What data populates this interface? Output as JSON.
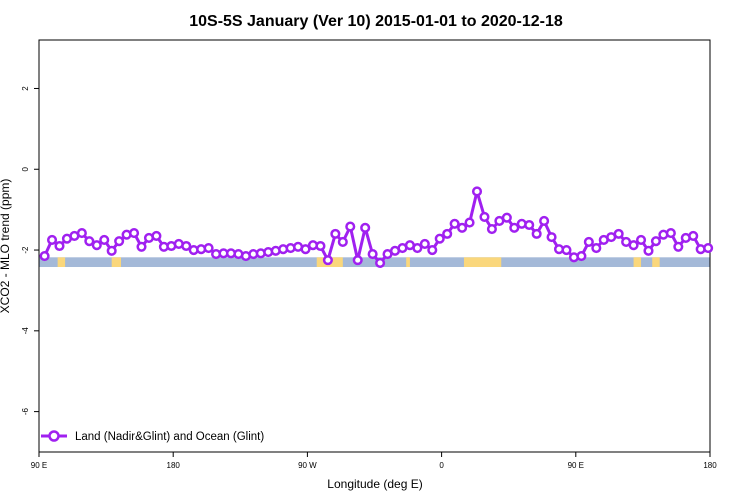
{
  "chart_data": {
    "type": "line",
    "title": "10S-5S January (Ver 10)   2015-01-01 to 2020-12-18",
    "xlabel": "Longitude (deg E)",
    "ylabel": "XCO2 - MLO trend (ppm)",
    "xlim": [
      90,
      450
    ],
    "ylim": [
      -7,
      3.2
    ],
    "x_ticks": [
      {
        "value": 90,
        "label": "90 E"
      },
      {
        "value": 162,
        "label": "180"
      },
      {
        "value": 234,
        "label": "90 W"
      },
      {
        "value": 306,
        "label": "0"
      },
      {
        "value": 378,
        "label": "90 E"
      },
      {
        "value": 450,
        "label": "180"
      }
    ],
    "y_ticks": [
      {
        "value": 2,
        "label": "2"
      },
      {
        "value": 0,
        "label": "0"
      },
      {
        "value": -2,
        "label": "-2"
      },
      {
        "value": -4,
        "label": "-4"
      },
      {
        "value": -6,
        "label": "-6"
      }
    ],
    "legend": {
      "label": "Land (Nadir&Glint) and Ocean (Glint)",
      "position": "bottom-left"
    },
    "series": [
      {
        "name": "Land (Nadir&Glint) and Ocean (Glint)",
        "color": "#a020f0",
        "x": [
          93,
          97,
          101,
          105,
          109,
          113,
          117,
          121,
          125,
          129,
          133,
          137,
          141,
          145,
          149,
          153,
          157,
          161,
          165,
          169,
          173,
          177,
          181,
          185,
          189,
          193,
          197,
          201,
          205,
          209,
          213,
          217,
          221,
          225,
          229,
          233,
          237,
          241,
          245,
          249,
          253,
          257,
          261,
          265,
          269,
          273,
          277,
          281,
          285,
          289,
          293,
          297,
          301,
          305,
          309,
          313,
          317,
          321,
          325,
          329,
          333,
          337,
          341,
          345,
          349,
          353,
          357,
          361,
          365,
          369,
          373,
          377,
          381,
          385,
          389,
          393,
          397,
          401,
          405,
          409,
          413,
          417,
          421,
          425,
          429,
          433,
          437,
          441,
          445,
          449
        ],
        "values": [
          -2.15,
          -1.75,
          -1.9,
          -1.72,
          -1.65,
          -1.58,
          -1.78,
          -1.88,
          -1.75,
          -2.02,
          -1.78,
          -1.62,
          -1.58,
          -1.92,
          -1.7,
          -1.65,
          -1.92,
          -1.9,
          -1.85,
          -1.9,
          -2.0,
          -1.98,
          -1.95,
          -2.1,
          -2.08,
          -2.08,
          -2.1,
          -2.15,
          -2.1,
          -2.08,
          -2.05,
          -2.02,
          -1.98,
          -1.95,
          -1.92,
          -1.98,
          -1.88,
          -1.9,
          -2.25,
          -1.6,
          -1.8,
          -1.42,
          -2.25,
          -1.45,
          -2.1,
          -2.32,
          -2.1,
          -2.02,
          -1.95,
          -1.88,
          -1.95,
          -1.85,
          -2.0,
          -1.72,
          -1.6,
          -1.35,
          -1.45,
          -1.32,
          -0.55,
          -1.18,
          -1.48,
          -1.28,
          -1.2,
          -1.45,
          -1.35,
          -1.38,
          -1.6,
          -1.28,
          -1.68,
          -1.98,
          -2.0,
          -2.18,
          -2.15,
          -1.8,
          -1.95,
          -1.75,
          -1.68,
          -1.6,
          -1.8,
          -1.88,
          -1.75,
          -2.02,
          -1.78,
          -1.62,
          -1.58,
          -1.92,
          -1.7,
          -1.65,
          -1.98,
          -1.95
        ]
      }
    ],
    "background_band": {
      "y_range": [
        -2.42,
        -2.18
      ],
      "ocean_color": "#a4b9d8",
      "land_color": "#fad77c",
      "land_segments": [
        [
          100,
          104
        ],
        [
          129,
          134
        ],
        [
          239,
          253
        ],
        [
          287,
          289
        ],
        [
          318,
          338
        ],
        [
          409,
          413
        ],
        [
          419,
          423
        ]
      ]
    }
  }
}
